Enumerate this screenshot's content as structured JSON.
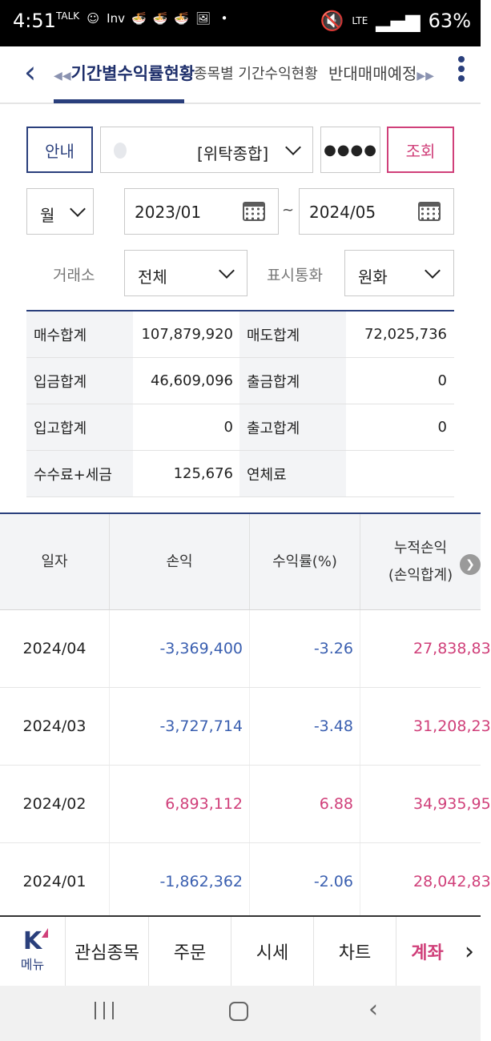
{
  "status_bar": {
    "time": "4:51",
    "icons": [
      "TALK",
      "☺",
      "Inv",
      "🍜",
      "🍜",
      "🍜",
      "🖼",
      "•"
    ],
    "network": "LTE",
    "battery": "63%"
  },
  "nav": {
    "tabs": [
      "기간별수익률현황",
      "종목별 기간수익현황",
      "반대매매예정"
    ],
    "active_index": 0
  },
  "controls": {
    "info_button": "안내",
    "account_type": "[위탁종합]",
    "password_mask": "●●●●",
    "query_button": "조회",
    "period_unit": "월",
    "date_from": "2023/01",
    "date_separator": "~",
    "date_to": "2024/05",
    "exchange_label": "거래소",
    "exchange_value": "전체",
    "currency_label": "표시통화",
    "currency_value": "원화"
  },
  "summary": [
    {
      "label1": "매수합계",
      "value1": "107,879,920",
      "label2": "매도합계",
      "value2": "72,025,736"
    },
    {
      "label1": "입금합계",
      "value1": "46,609,096",
      "label2": "출금합계",
      "value2": "0"
    },
    {
      "label1": "입고합계",
      "value1": "0",
      "label2": "출고합계",
      "value2": "0"
    },
    {
      "label1": "수수료+세금",
      "value1": "125,676",
      "label2": "연체료",
      "value2": ""
    }
  ],
  "table": {
    "headers": {
      "date": "일자",
      "pnl": "손익",
      "rate": "수익률(%)",
      "cumulative_line1": "누적손익",
      "cumulative_line2": "(손익합계)"
    },
    "rows": [
      {
        "date": "2024/04",
        "pnl": "-3,369,400",
        "rate": "-3.26",
        "cumulative": "27,838,83",
        "sign": "neg"
      },
      {
        "date": "2024/03",
        "pnl": "-3,727,714",
        "rate": "-3.48",
        "cumulative": "31,208,23",
        "sign": "neg"
      },
      {
        "date": "2024/02",
        "pnl": "6,893,112",
        "rate": "6.88",
        "cumulative": "34,935,95",
        "sign": "pos"
      },
      {
        "date": "2024/01",
        "pnl": "-1,862,362",
        "rate": "-2.06",
        "cumulative": "28,042,83",
        "sign": "neg"
      }
    ]
  },
  "bottom_nav": {
    "logo": "K",
    "menu": "메뉴",
    "items": [
      "관심종목",
      "주문",
      "시세",
      "차트",
      "계좌"
    ],
    "active": "계좌"
  },
  "colors": {
    "navy": "#2a3f7c",
    "positive": "#d0407a",
    "negative": "#3a5fb0"
  }
}
